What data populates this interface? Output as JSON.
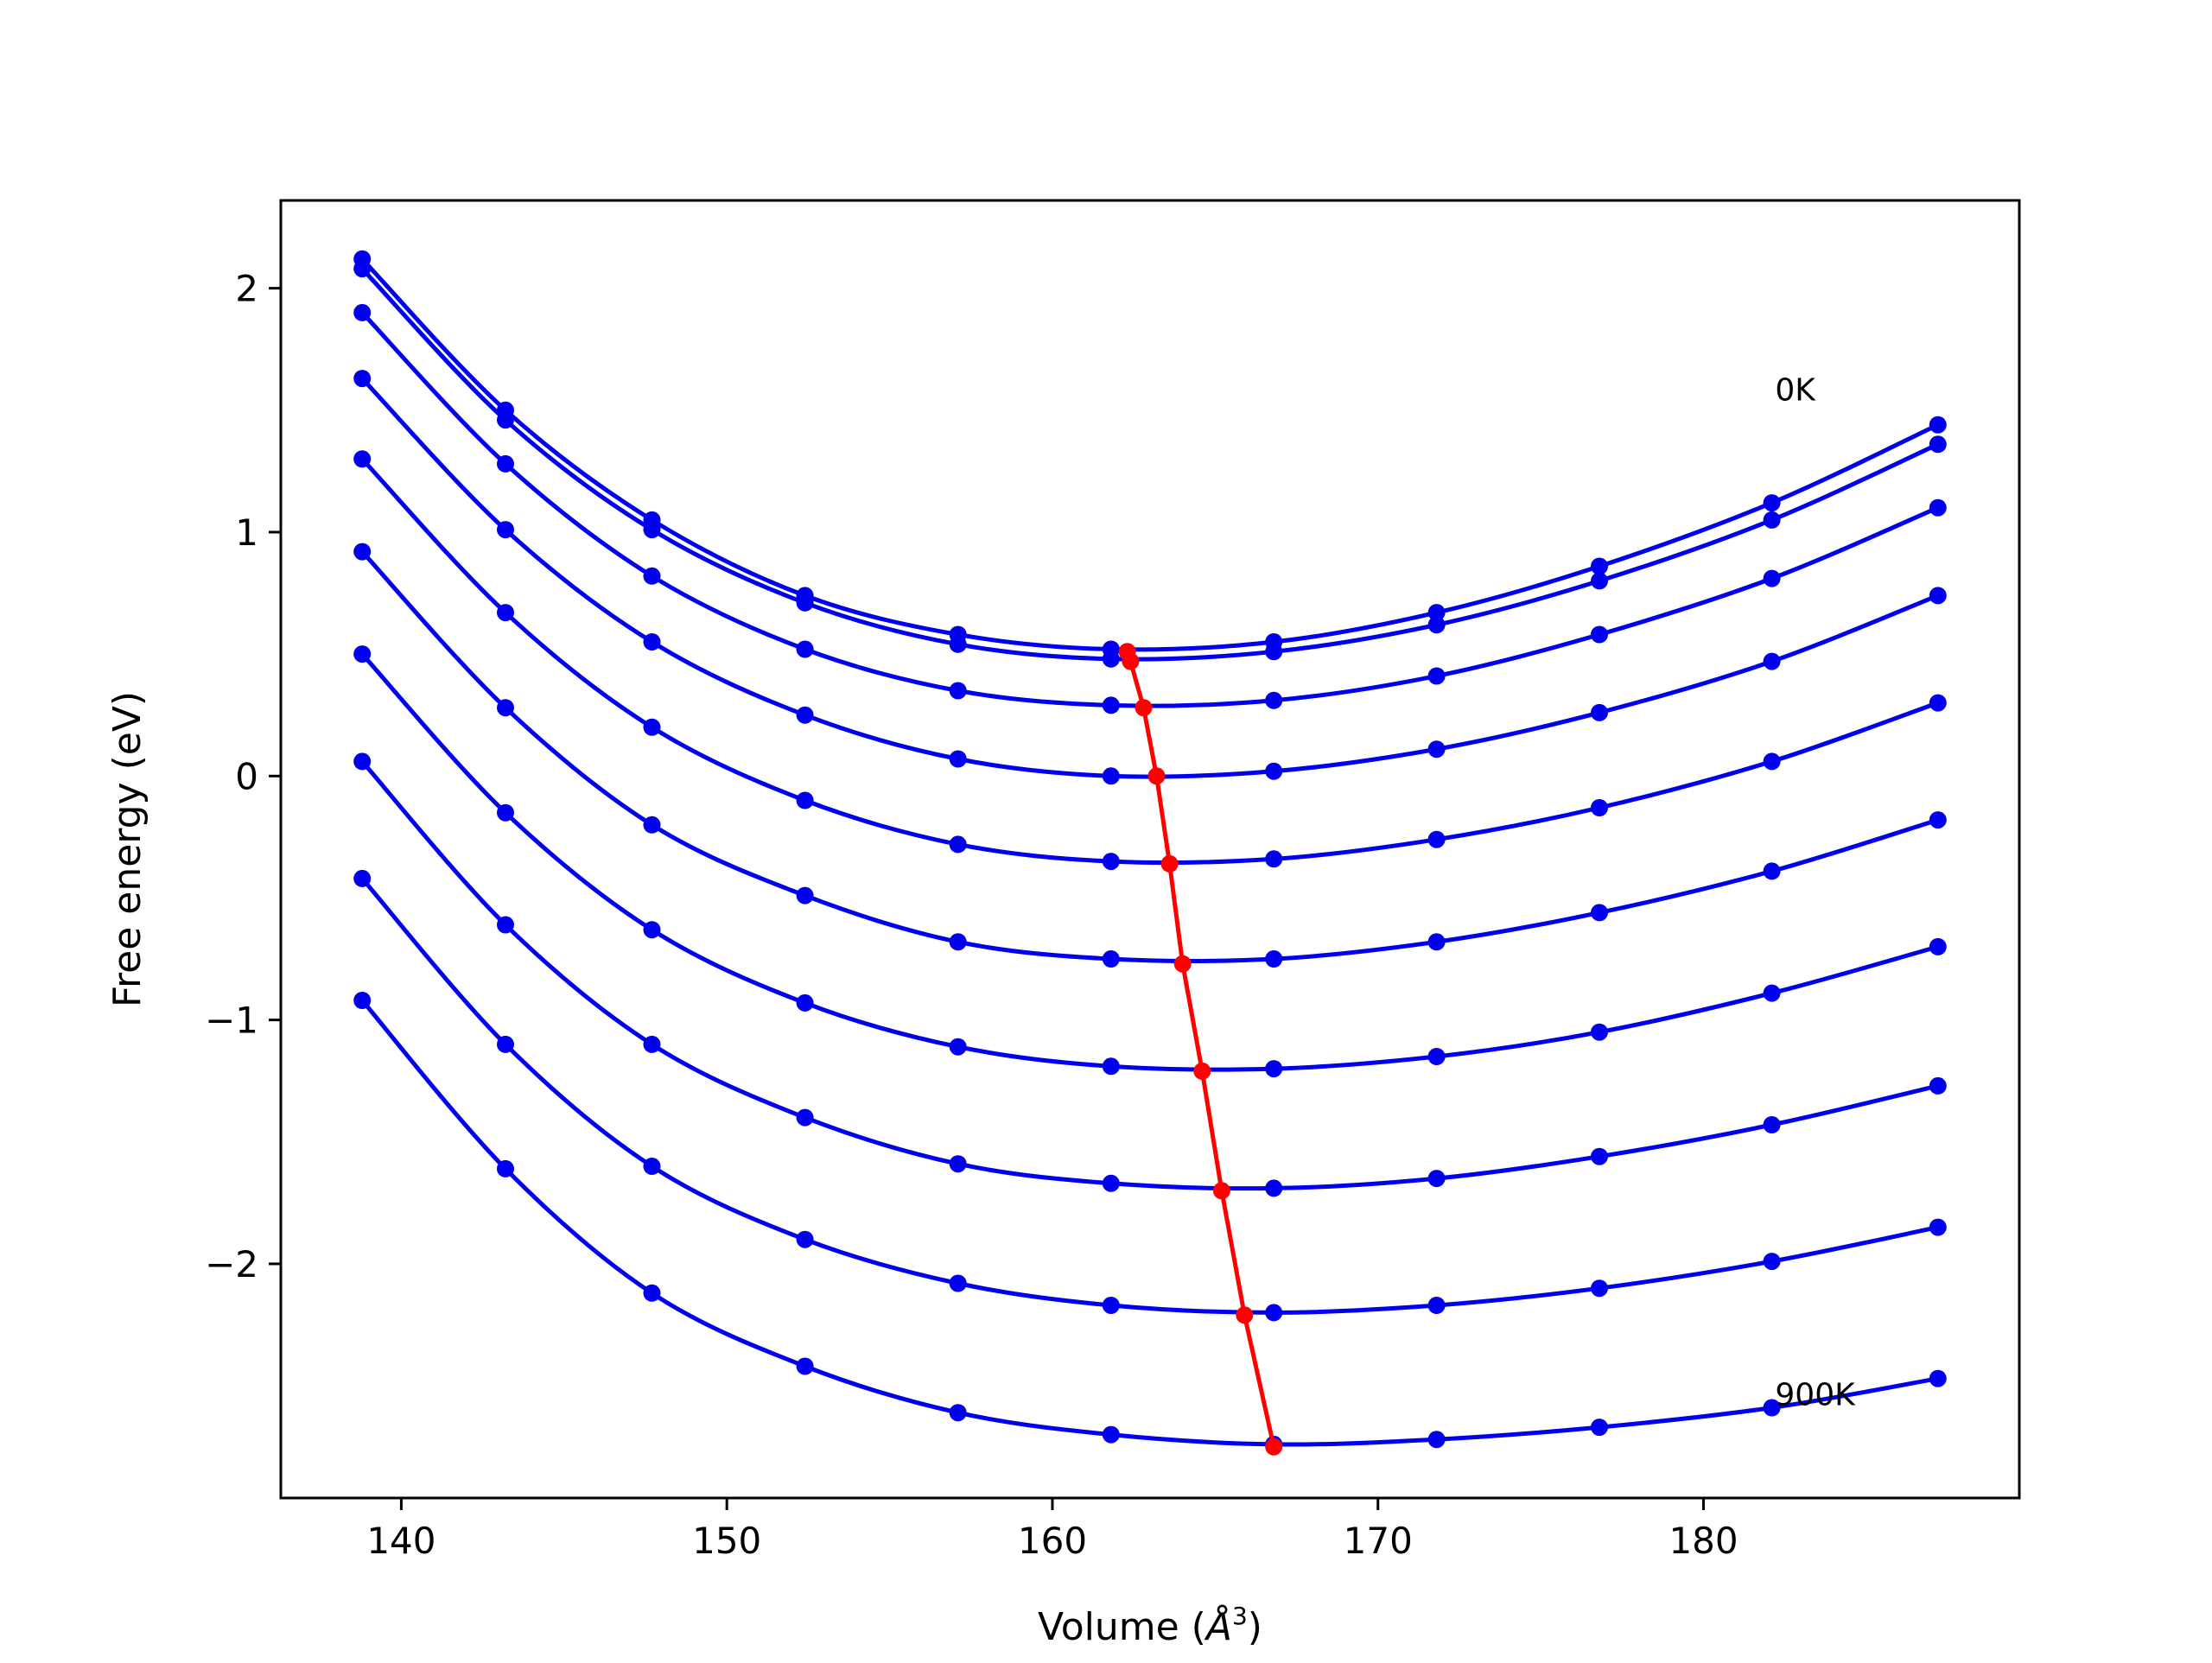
{
  "chart_data": {
    "type": "line",
    "xlabel": "Volume",
    "xlabel_unit_base": "Å",
    "xlabel_unit_exp": "3",
    "ylabel": "Free energy (eV)",
    "xlim": [
      136.3,
      189.7
    ],
    "ylim": [
      -2.96,
      2.36
    ],
    "x_ticks": [
      140,
      150,
      160,
      170,
      180
    ],
    "y_ticks": [
      2,
      1,
      0,
      -1,
      -2
    ],
    "x_tick_labels": [
      "140",
      "150",
      "160",
      "170",
      "180"
    ],
    "y_tick_labels": [
      "2",
      "1",
      "0",
      "−1",
      "−2"
    ],
    "grid": false,
    "legend": "none",
    "annotations": [
      {
        "text": "0K",
        "x": 182.2,
        "y": 1.54
      },
      {
        "text": "900K",
        "x": 182.2,
        "y": -2.58
      }
    ],
    "curve_color": "#0000ee",
    "minimum_color": "#ff0000",
    "x": [
      138.8,
      143.2,
      147.7,
      152.4,
      157.1,
      161.8,
      166.8,
      171.8,
      176.8,
      182.1,
      187.2
    ],
    "series": [
      {
        "values": [
          2.12,
          1.5,
          1.05,
          0.74,
          0.58,
          0.52,
          0.55,
          0.67,
          0.86,
          1.12,
          1.44
        ],
        "min_x": 162.3,
        "min_y": 0.51
      },
      {
        "values": [
          2.08,
          1.46,
          1.01,
          0.71,
          0.54,
          0.48,
          0.51,
          0.62,
          0.8,
          1.05,
          1.36
        ],
        "min_x": 162.4,
        "min_y": 0.47
      },
      {
        "values": [
          1.9,
          1.28,
          0.82,
          0.52,
          0.35,
          0.29,
          0.31,
          0.41,
          0.58,
          0.81,
          1.1
        ],
        "min_x": 162.8,
        "min_y": 0.28
      },
      {
        "values": [
          1.63,
          1.01,
          0.55,
          0.25,
          0.07,
          0.0,
          0.02,
          0.11,
          0.26,
          0.47,
          0.74
        ],
        "min_x": 163.2,
        "min_y": 0.0
      },
      {
        "values": [
          1.3,
          0.67,
          0.2,
          -0.1,
          -0.28,
          -0.35,
          -0.34,
          -0.26,
          -0.13,
          0.06,
          0.3
        ],
        "min_x": 163.6,
        "min_y": -0.36
      },
      {
        "values": [
          0.92,
          0.28,
          -0.2,
          -0.49,
          -0.68,
          -0.75,
          -0.75,
          -0.68,
          -0.56,
          -0.39,
          -0.18
        ],
        "min_x": 164.0,
        "min_y": -0.77
      },
      {
        "values": [
          0.5,
          -0.15,
          -0.63,
          -0.93,
          -1.11,
          -1.19,
          -1.2,
          -1.15,
          -1.05,
          -0.89,
          -0.7
        ],
        "min_x": 164.6,
        "min_y": -1.21
      },
      {
        "values": [
          0.06,
          -0.61,
          -1.1,
          -1.4,
          -1.59,
          -1.67,
          -1.69,
          -1.65,
          -1.56,
          -1.43,
          -1.27
        ],
        "min_x": 165.2,
        "min_y": -1.7
      },
      {
        "values": [
          -0.42,
          -1.1,
          -1.6,
          -1.9,
          -2.08,
          -2.17,
          -2.2,
          -2.17,
          -2.1,
          -1.99,
          -1.85
        ],
        "min_x": 165.9,
        "min_y": -2.21
      },
      {
        "values": [
          -0.92,
          -1.61,
          -2.12,
          -2.42,
          -2.61,
          -2.7,
          -2.74,
          -2.72,
          -2.67,
          -2.59,
          -2.47
        ],
        "min_x": 166.8,
        "min_y": -2.75
      }
    ]
  }
}
